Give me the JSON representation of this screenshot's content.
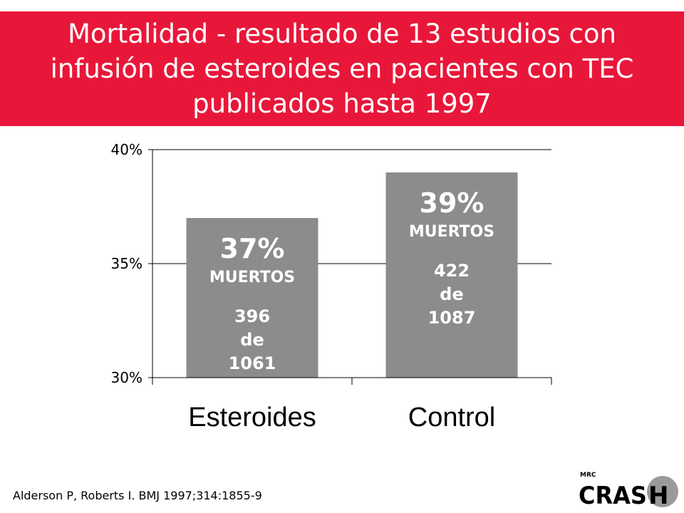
{
  "title": "Mortalidad - resultado de 13 estudios con infusión de esteroides en pacientes con TEC publicados hasta 1997",
  "citation": "Alderson P, Roberts I. BMJ 1997;314:1855-9",
  "logo": {
    "top_text": "MRC",
    "main_text": "CRAS",
    "accent_letter": "H"
  },
  "colors": {
    "banner": "#e8173a",
    "bar": "#8c8c8c",
    "axis": "#000000",
    "label_on_bar": "#ffffff",
    "logo_accent": "#e8173a"
  },
  "chart_data": {
    "type": "bar",
    "categories": [
      "Esteroides",
      "Control"
    ],
    "values": [
      37,
      39
    ],
    "unit": "%",
    "ylim": [
      30,
      40
    ],
    "yticks": [
      30,
      35,
      40
    ],
    "ytick_labels": [
      "30%",
      "35%",
      "40%"
    ],
    "grid": true,
    "bar_labels": [
      {
        "pct": "37%",
        "word": "MUERTOS",
        "count_lines": [
          "396",
          "de",
          "1061"
        ]
      },
      {
        "pct": "39%",
        "word": "MUERTOS",
        "count_lines": [
          "422",
          "de",
          "1087"
        ]
      }
    ]
  }
}
